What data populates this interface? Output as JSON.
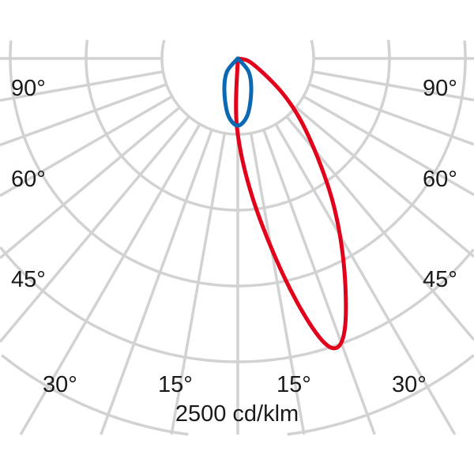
{
  "chart_data": {
    "type": "polar",
    "title": "",
    "unit_label": "2500 cd/klm",
    "radial_max": 2500,
    "ring_step": 500,
    "grid": true,
    "grid_color": "#d2d2d2",
    "angle_labels": {
      "left": [
        "90°",
        "60°",
        "45°",
        "30°",
        "15°"
      ],
      "right": [
        "90°",
        "60°",
        "45°",
        "30°",
        "15°"
      ]
    },
    "series": [
      {
        "color": "#e2001a",
        "points": [
          [
            0,
            0
          ],
          [
            -0.7,
            453
          ],
          [
            6.1,
            927
          ],
          [
            12,
            1474
          ],
          [
            15.9,
            1880
          ],
          [
            18.7,
            2016
          ],
          [
            22,
            1892
          ],
          [
            27.5,
            1510
          ],
          [
            33.9,
            1111
          ],
          [
            42.5,
            686
          ],
          [
            51.5,
            393
          ],
          [
            70,
            105
          ],
          [
            90,
            0
          ]
        ]
      },
      {
        "color": "#0b68b3",
        "points": [
          [
            0,
            0
          ],
          [
            39,
            115
          ],
          [
            22,
            236
          ],
          [
            9.6,
            380
          ],
          [
            0,
            443
          ],
          [
            -9.6,
            380
          ],
          [
            -22,
            236
          ],
          [
            -39,
            115
          ],
          [
            0,
            0
          ]
        ]
      }
    ]
  }
}
